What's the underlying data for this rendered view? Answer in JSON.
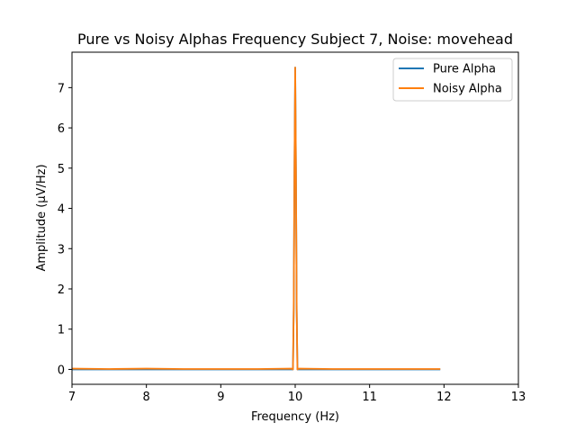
{
  "chart_data": {
    "type": "line",
    "title": "Pure vs Noisy Alphas Frequency Subject 7, Noise: movehead",
    "xlabel": "Frequency (Hz)",
    "ylabel": "Amplitude (μV/Hz)",
    "xlim": [
      7,
      13
    ],
    "ylim": [
      -0.37,
      7.88
    ],
    "xticks": [
      7,
      8,
      9,
      10,
      11,
      12,
      13
    ],
    "yticks": [
      0,
      1,
      2,
      3,
      4,
      5,
      6,
      7
    ],
    "grid": false,
    "legend_position": "upper right",
    "series": [
      {
        "name": "Pure Alpha",
        "color": "#1f77b4",
        "x": [
          7.0,
          9.95,
          9.97,
          9.98,
          9.99,
          10.0,
          10.01,
          10.02,
          10.03,
          10.05,
          11.95
        ],
        "y": [
          0.0,
          0.0,
          0.0,
          1.5,
          5.0,
          7.5,
          5.0,
          1.5,
          0.0,
          0.0,
          0.0
        ]
      },
      {
        "name": "Noisy Alpha",
        "color": "#ff7f0e",
        "x": [
          7.0,
          7.5,
          8.0,
          8.5,
          9.0,
          9.5,
          9.95,
          9.97,
          9.98,
          9.99,
          10.0,
          10.01,
          10.02,
          10.03,
          10.05,
          10.5,
          11.0,
          11.5,
          11.95
        ],
        "y": [
          0.02,
          0.01,
          0.02,
          0.01,
          0.01,
          0.01,
          0.02,
          0.0,
          1.5,
          5.0,
          7.5,
          5.0,
          1.5,
          0.0,
          0.02,
          0.01,
          0.01,
          0.01,
          0.01
        ]
      }
    ]
  }
}
